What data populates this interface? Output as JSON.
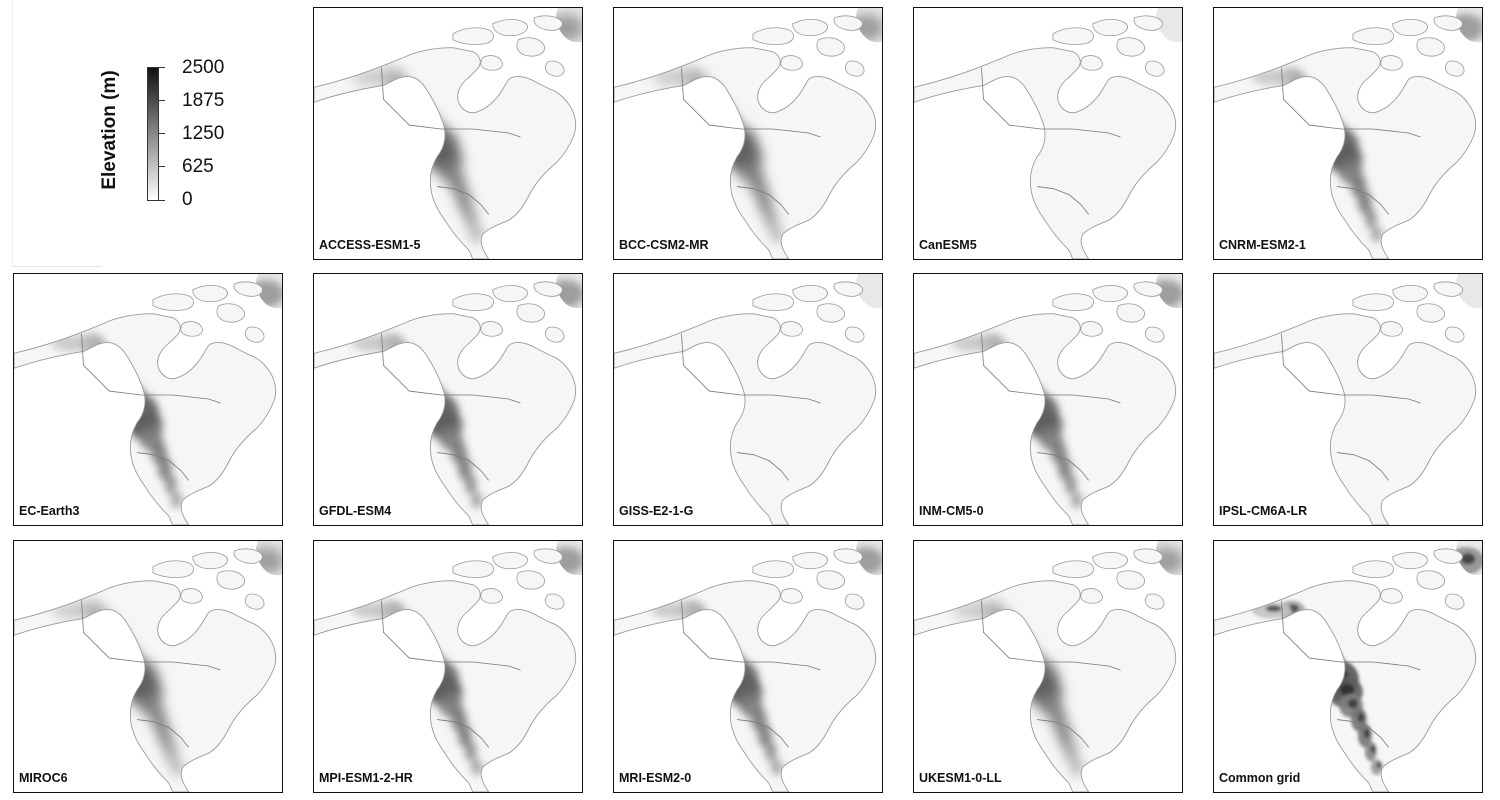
{
  "legend": {
    "title": "Elevation (m)",
    "ticks": [
      "2500",
      "1875",
      "1250",
      "625",
      "0"
    ],
    "range": [
      0,
      2500
    ],
    "colors": {
      "low": "#ffffff",
      "high": "#111111"
    }
  },
  "panels": [
    {
      "label": "ACCESS-ESM1-5",
      "style": "smooth"
    },
    {
      "label": "BCC-CSM2-MR",
      "style": "smooth"
    },
    {
      "label": "CanESM5",
      "style": "blocky"
    },
    {
      "label": "CNRM-ESM2-1",
      "style": "medium"
    },
    {
      "label": "EC-Earth3",
      "style": "medium"
    },
    {
      "label": "GFDL-ESM4",
      "style": "medium"
    },
    {
      "label": "GISS-E2-1-G",
      "style": "blocky"
    },
    {
      "label": "INM-CM5-0",
      "style": "medium"
    },
    {
      "label": "IPSL-CM6A-LR",
      "style": "blocky"
    },
    {
      "label": "MIROC6",
      "style": "smooth"
    },
    {
      "label": "MPI-ESM1-2-HR",
      "style": "medium"
    },
    {
      "label": "MRI-ESM2-0",
      "style": "medium"
    },
    {
      "label": "UKESM1-0-LL",
      "style": "smooth"
    },
    {
      "label": "Common grid",
      "style": "fine"
    }
  ]
}
